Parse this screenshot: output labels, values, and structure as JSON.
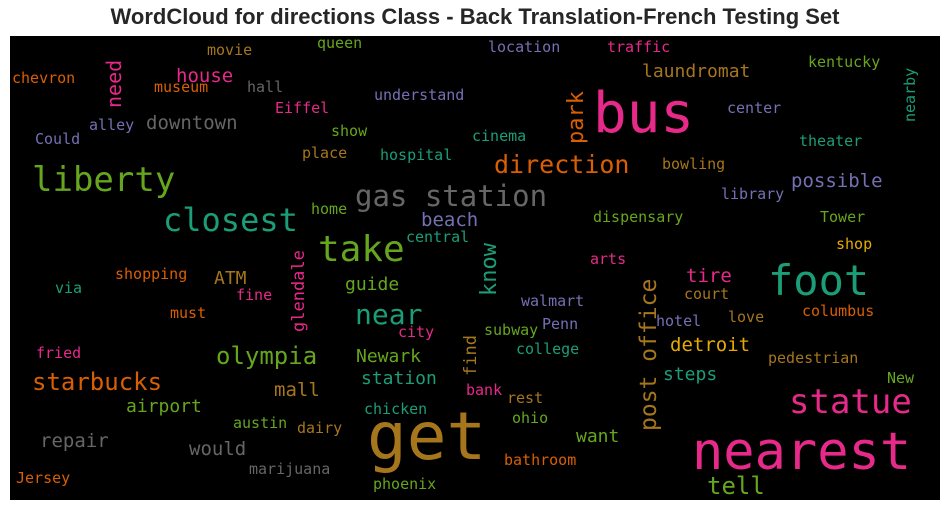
{
  "title": "WordCloud for directions Class - Back Translation-French Testing Set",
  "colors": {
    "background": "#000000",
    "pink": "#e7298a",
    "green": "#66a61e",
    "teal": "#1b9e77",
    "orange": "#d95f02",
    "gold": "#a6761d",
    "purple": "#7570b3",
    "grey": "#666666",
    "yellow": "#e6ab02"
  },
  "words": [
    {
      "id": "get",
      "text": "get",
      "color": "gold"
    },
    {
      "id": "nearest",
      "text": "nearest",
      "color": "pink"
    },
    {
      "id": "bus",
      "text": "bus",
      "color": "pink"
    },
    {
      "id": "foot",
      "text": "foot",
      "color": "teal"
    },
    {
      "id": "liberty",
      "text": "liberty",
      "color": "green"
    },
    {
      "id": "take",
      "text": "take",
      "color": "green"
    },
    {
      "id": "closest",
      "text": "closest",
      "color": "teal"
    },
    {
      "id": "statue",
      "text": "statue",
      "color": "pink"
    },
    {
      "id": "gas-station",
      "text": "gas station",
      "color": "grey"
    },
    {
      "id": "direction",
      "text": "direction",
      "color": "orange"
    },
    {
      "id": "near",
      "text": "near",
      "color": "teal"
    },
    {
      "id": "olympia",
      "text": "olympia",
      "color": "green"
    },
    {
      "id": "starbucks",
      "text": "starbucks",
      "color": "orange"
    },
    {
      "id": "post-office",
      "text": "post office",
      "color": "gold"
    },
    {
      "id": "park",
      "text": "park",
      "color": "orange"
    },
    {
      "id": "need",
      "text": "need",
      "color": "pink"
    },
    {
      "id": "know",
      "text": "know",
      "color": "teal"
    },
    {
      "id": "tell",
      "text": "tell",
      "color": "green"
    },
    {
      "id": "laundromat",
      "text": "laundromat",
      "color": "gold"
    },
    {
      "id": "downtown",
      "text": "downtown",
      "color": "grey"
    },
    {
      "id": "house",
      "text": "house",
      "color": "pink"
    },
    {
      "id": "possible",
      "text": "possible",
      "color": "purple"
    },
    {
      "id": "beach",
      "text": "beach",
      "color": "purple"
    },
    {
      "id": "detroit",
      "text": "detroit",
      "color": "yellow"
    },
    {
      "id": "newark",
      "text": "Newark",
      "color": "green"
    },
    {
      "id": "station",
      "text": "station",
      "color": "teal"
    },
    {
      "id": "mall",
      "text": "mall",
      "color": "gold"
    },
    {
      "id": "airport",
      "text": "airport",
      "color": "green"
    },
    {
      "id": "repair",
      "text": "repair",
      "color": "grey"
    },
    {
      "id": "would",
      "text": "would",
      "color": "grey"
    },
    {
      "id": "guide",
      "text": "guide",
      "color": "green"
    },
    {
      "id": "atm",
      "text": "ATM",
      "color": "gold"
    },
    {
      "id": "glendale",
      "text": "glendale",
      "color": "pink"
    },
    {
      "id": "tire",
      "text": "tire",
      "color": "pink"
    },
    {
      "id": "steps",
      "text": "steps",
      "color": "teal"
    },
    {
      "id": "want",
      "text": "want",
      "color": "green"
    },
    {
      "id": "find",
      "text": "find",
      "color": "gold"
    },
    {
      "id": "movie",
      "text": "movie",
      "color": "gold"
    },
    {
      "id": "queen",
      "text": "queen",
      "color": "green"
    },
    {
      "id": "location",
      "text": "location",
      "color": "purple"
    },
    {
      "id": "traffic",
      "text": "traffic",
      "color": "pink"
    },
    {
      "id": "kentucky",
      "text": "kentucky",
      "color": "green"
    },
    {
      "id": "nearby",
      "text": "nearby",
      "color": "teal"
    },
    {
      "id": "chevron",
      "text": "chevron",
      "color": "orange"
    },
    {
      "id": "museum",
      "text": "museum",
      "color": "orange"
    },
    {
      "id": "hall",
      "text": "hall",
      "color": "grey"
    },
    {
      "id": "understand",
      "text": "understand",
      "color": "purple"
    },
    {
      "id": "center",
      "text": "center",
      "color": "purple"
    },
    {
      "id": "eiffel",
      "text": "Eiffel",
      "color": "pink"
    },
    {
      "id": "could",
      "text": "Could",
      "color": "purple"
    },
    {
      "id": "alley",
      "text": "alley",
      "color": "purple"
    },
    {
      "id": "show",
      "text": "show",
      "color": "green"
    },
    {
      "id": "cinema",
      "text": "cinema",
      "color": "teal"
    },
    {
      "id": "theater",
      "text": "theater",
      "color": "teal"
    },
    {
      "id": "place",
      "text": "place",
      "color": "gold"
    },
    {
      "id": "hospital",
      "text": "hospital",
      "color": "teal"
    },
    {
      "id": "bowling",
      "text": "bowling",
      "color": "gold"
    },
    {
      "id": "library",
      "text": "library",
      "color": "purple"
    },
    {
      "id": "home",
      "text": "home",
      "color": "green"
    },
    {
      "id": "dispensary",
      "text": "dispensary",
      "color": "green"
    },
    {
      "id": "tower",
      "text": "Tower",
      "color": "green"
    },
    {
      "id": "central",
      "text": "central",
      "color": "teal"
    },
    {
      "id": "shop",
      "text": "shop",
      "color": "yellow"
    },
    {
      "id": "arts",
      "text": "arts",
      "color": "pink"
    },
    {
      "id": "shopping",
      "text": "shopping",
      "color": "orange"
    },
    {
      "id": "via",
      "text": "via",
      "color": "teal"
    },
    {
      "id": "fine",
      "text": "fine",
      "color": "pink"
    },
    {
      "id": "court",
      "text": "court",
      "color": "gold"
    },
    {
      "id": "walmart",
      "text": "walmart",
      "color": "purple"
    },
    {
      "id": "must",
      "text": "must",
      "color": "orange"
    },
    {
      "id": "hotel",
      "text": "hotel",
      "color": "purple"
    },
    {
      "id": "columbus",
      "text": "columbus",
      "color": "orange"
    },
    {
      "id": "penn",
      "text": "Penn",
      "color": "purple"
    },
    {
      "id": "love",
      "text": "love",
      "color": "gold"
    },
    {
      "id": "city",
      "text": "city",
      "color": "pink"
    },
    {
      "id": "subway",
      "text": "subway",
      "color": "green"
    },
    {
      "id": "fried",
      "text": "fried",
      "color": "pink"
    },
    {
      "id": "college",
      "text": "college",
      "color": "teal"
    },
    {
      "id": "pedestrian",
      "text": "pedestrian",
      "color": "gold"
    },
    {
      "id": "new",
      "text": "New",
      "color": "green"
    },
    {
      "id": "bank",
      "text": "bank",
      "color": "pink"
    },
    {
      "id": "rest",
      "text": "rest",
      "color": "gold"
    },
    {
      "id": "chicken",
      "text": "chicken",
      "color": "teal"
    },
    {
      "id": "ohio",
      "text": "ohio",
      "color": "green"
    },
    {
      "id": "austin",
      "text": "austin",
      "color": "green"
    },
    {
      "id": "dairy",
      "text": "dairy",
      "color": "gold"
    },
    {
      "id": "bathroom",
      "text": "bathroom",
      "color": "orange"
    },
    {
      "id": "marijuana",
      "text": "marijuana",
      "color": "grey"
    },
    {
      "id": "jersey",
      "text": "Jersey",
      "color": "orange"
    },
    {
      "id": "phoenix",
      "text": "phoenix",
      "color": "green"
    }
  ]
}
